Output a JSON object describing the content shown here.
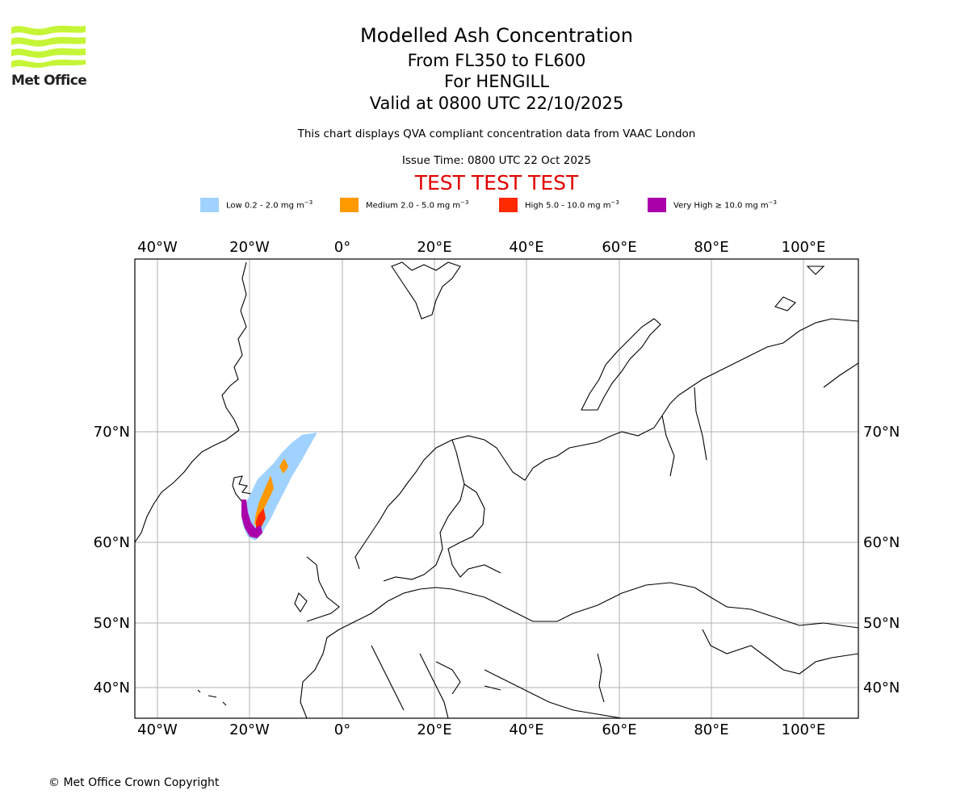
{
  "logo": {
    "text": "Met Office"
  },
  "header": {
    "title": "Modelled Ash Concentration",
    "levels": "From FL350 to FL600",
    "volcano": "For HENGILL",
    "valid": "Valid at 0800 UTC 22/10/2025",
    "note": "This chart displays QVA compliant concentration data from VAAC London",
    "issue_time": "Issue Time: 0800 UTC 22 Oct 2025",
    "test_banner": "TEST TEST TEST"
  },
  "legend": [
    {
      "label": "Low 0.2 - 2.0 mg m",
      "unit_exp": "−3",
      "color": "#a0d2ff"
    },
    {
      "label": "Medium 2.0 - 5.0 mg m",
      "unit_exp": "−3",
      "color": "#ff9900"
    },
    {
      "label": "High 5.0 - 10.0 mg m",
      "unit_exp": "−3",
      "color": "#ff2a00"
    },
    {
      "label": "Very High  ≥  10.0 mg m",
      "unit_exp": "−3",
      "color": "#aa00aa"
    }
  ],
  "map": {
    "lon_ticks": [
      "40°W",
      "20°W",
      "0°",
      "20°E",
      "40°E",
      "60°E",
      "80°E",
      "100°E"
    ],
    "lat_ticks": [
      "70°N",
      "60°N",
      "50°N",
      "40°N"
    ],
    "colors": {
      "grid": "#b0b0b0",
      "coast": "#000000"
    }
  },
  "footer": {
    "copyright": "© Met Office Crown Copyright"
  }
}
